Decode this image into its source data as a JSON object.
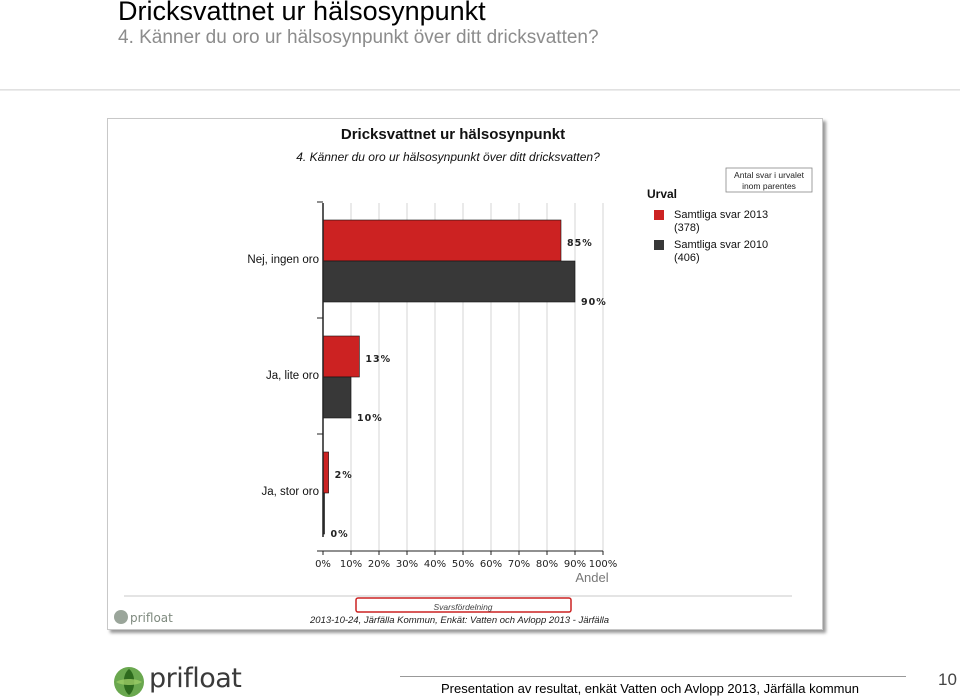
{
  "slide": {
    "title": "Dricksvattnet ur hälsosynpunkt",
    "subtitle": "4. Känner du oro ur hälsosynpunkt över ditt dricksvatten?",
    "footer": "Presentation av resultat, enkät Vatten och Avlopp 2013, Järfälla kommun",
    "page_number": "10",
    "logo_text": "prifloat"
  },
  "colors": {
    "series_2013": "#cc2222",
    "series_2010": "#383838",
    "grid": "#d4d4d4",
    "axis": "#222222"
  },
  "chart_data": {
    "type": "bar",
    "orientation": "horizontal",
    "title": "Dricksvattnet ur hälsosynpunkt",
    "subtitle": "4. Känner du oro ur hälsosynpunkt över ditt dricksvatten?",
    "categories": [
      "Nej, ingen oro",
      "Ja, lite oro",
      "Ja, stor oro"
    ],
    "series": [
      {
        "name": "Samtliga svar 2013 (378)",
        "values": [
          85,
          13,
          2
        ],
        "labels": [
          "85%",
          "13%",
          "2%"
        ]
      },
      {
        "name": "Samtliga svar 2010 (406)",
        "values": [
          90,
          10,
          0
        ],
        "labels": [
          "90%",
          "10%",
          "0%"
        ]
      }
    ],
    "xlabel": "Andel",
    "ylabel": "",
    "xlim": [
      0,
      100
    ],
    "xticks": [
      "0%",
      "10%",
      "20%",
      "30%",
      "40%",
      "50%",
      "60%",
      "70%",
      "80%",
      "90%",
      "100%"
    ],
    "grid": true,
    "legend_title": "Urval",
    "legend_position": "right",
    "legend_note": [
      "Antal svar i urvalet",
      "inom parentes"
    ],
    "footer_box": "Svarsfördelning",
    "footer_source": "2013-10-24, Järfälla Kommun, Enkät: Vatten och Avlopp 2013 - Järfälla",
    "logo_text": "prifloat"
  }
}
